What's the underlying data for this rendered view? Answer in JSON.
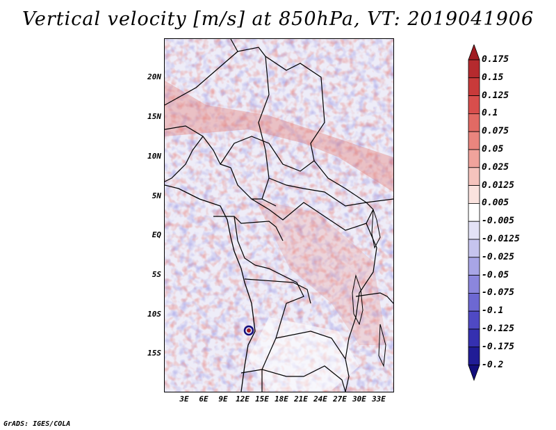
{
  "title": "Vertical velocity [m/s] at 850hPa, VT: 2019041906",
  "credit": "GrADS: IGES/COLA",
  "map": {
    "variable": "Vertical velocity",
    "units": "m/s",
    "level": "850hPa",
    "valid_time": "2019041906",
    "lat_ticks": [
      "20N",
      "15N",
      "10N",
      "5N",
      "EQ",
      "5S",
      "10S",
      "15S"
    ],
    "lon_ticks": [
      "3E",
      "6E",
      "9E",
      "12E",
      "15E",
      "18E",
      "21E",
      "24E",
      "27E",
      "30E",
      "33E"
    ]
  },
  "colorbar": {
    "labels": [
      "0.175",
      "0.15",
      "0.125",
      "0.1",
      "0.075",
      "0.05",
      "0.025",
      "0.0125",
      "0.005",
      "-0.005",
      "-0.0125",
      "-0.025",
      "-0.05",
      "-0.075",
      "-0.1",
      "-0.125",
      "-0.175",
      "-0.2"
    ],
    "colors": [
      "#a01c22",
      "#b52a2e",
      "#c83a3a",
      "#d84e4c",
      "#e26a64",
      "#ea857e",
      "#f0a39c",
      "#f5c3bd",
      "#fae2de",
      "#ffffff",
      "#e3e2f6",
      "#c6c4ee",
      "#a8a5e6",
      "#8b86dd",
      "#6d68d2",
      "#4f49c4",
      "#3530b0",
      "#201c96",
      "#120e7c"
    ]
  }
}
